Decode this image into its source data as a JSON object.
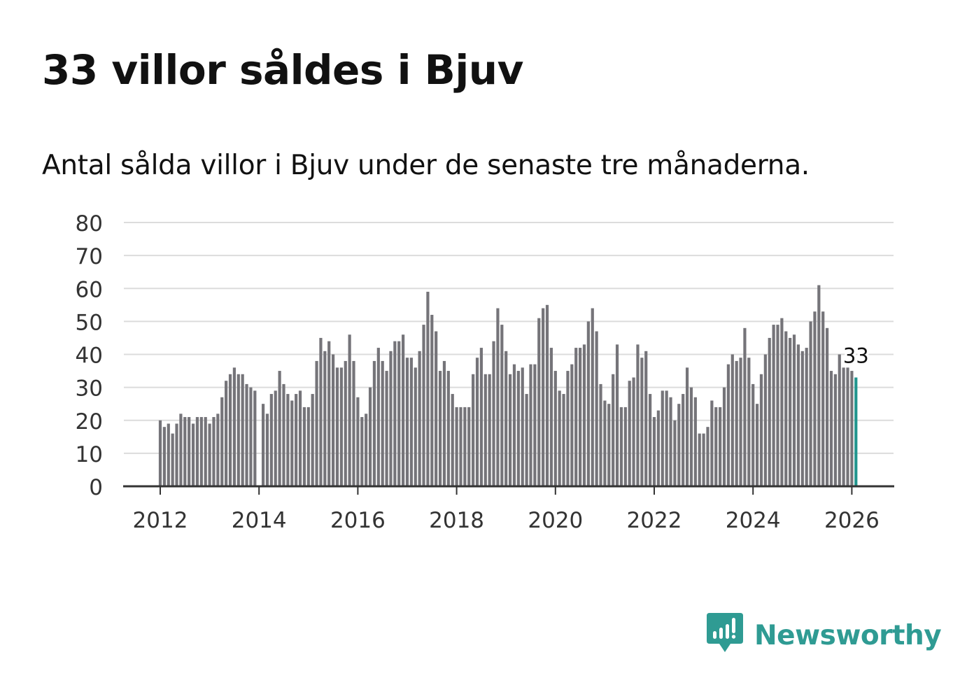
{
  "title": "33 villor såldes i Bjuv",
  "subtitle": "Antal sålda villor i Bjuv under de senaste tre månaderna.",
  "brand": {
    "name": "Newsworthy",
    "color": "#2f9b93",
    "icon": "newsworthy-logo-icon"
  },
  "colors": {
    "bar": "#757479",
    "highlight": "#21958e",
    "grid": "#dcdcdc",
    "axis": "#333333",
    "label": "#333333"
  },
  "chart_data": {
    "type": "bar",
    "title": "33 villor såldes i Bjuv",
    "subtitle": "Antal sålda villor i Bjuv under de senaste tre månaderna.",
    "xlabel": "",
    "ylabel": "",
    "ylim": [
      0,
      80
    ],
    "yticks": [
      "0",
      "10",
      "20",
      "30",
      "40",
      "50",
      "60",
      "70",
      "80"
    ],
    "xticks": [
      "2012",
      "2014",
      "2016",
      "2018",
      "2020",
      "2022",
      "2024",
      "2026"
    ],
    "x_start": "2012-01",
    "frequency": "monthly",
    "annotation": {
      "label": "33",
      "target": "last"
    },
    "values": [
      20,
      18,
      19,
      16,
      19,
      22,
      21,
      21,
      19,
      21,
      21,
      21,
      19,
      21,
      22,
      27,
      32,
      34,
      36,
      34,
      34,
      31,
      30,
      29,
      0,
      25,
      22,
      28,
      29,
      35,
      31,
      28,
      26,
      28,
      29,
      24,
      24,
      28,
      38,
      45,
      41,
      44,
      40,
      36,
      36,
      38,
      46,
      38,
      27,
      21,
      22,
      30,
      38,
      42,
      38,
      35,
      41,
      44,
      44,
      46,
      39,
      39,
      36,
      41,
      49,
      59,
      52,
      47,
      35,
      38,
      35,
      28,
      24,
      24,
      24,
      24,
      34,
      39,
      42,
      34,
      34,
      44,
      54,
      49,
      41,
      34,
      37,
      35,
      36,
      28,
      37,
      37,
      51,
      54,
      55,
      42,
      35,
      29,
      28,
      35,
      37,
      42,
      42,
      43,
      50,
      54,
      47,
      31,
      26,
      25,
      34,
      43,
      24,
      24,
      32,
      33,
      43,
      39,
      41,
      28,
      21,
      23,
      29,
      29,
      27,
      20,
      25,
      28,
      36,
      30,
      27,
      16,
      16,
      18,
      26,
      24,
      24,
      30,
      37,
      40,
      38,
      39,
      48,
      39,
      31,
      25,
      34,
      40,
      45,
      49,
      49,
      51,
      47,
      45,
      46,
      43,
      41,
      42,
      50,
      53,
      61,
      53,
      48,
      35,
      34,
      40,
      36,
      36,
      35,
      33
    ]
  }
}
